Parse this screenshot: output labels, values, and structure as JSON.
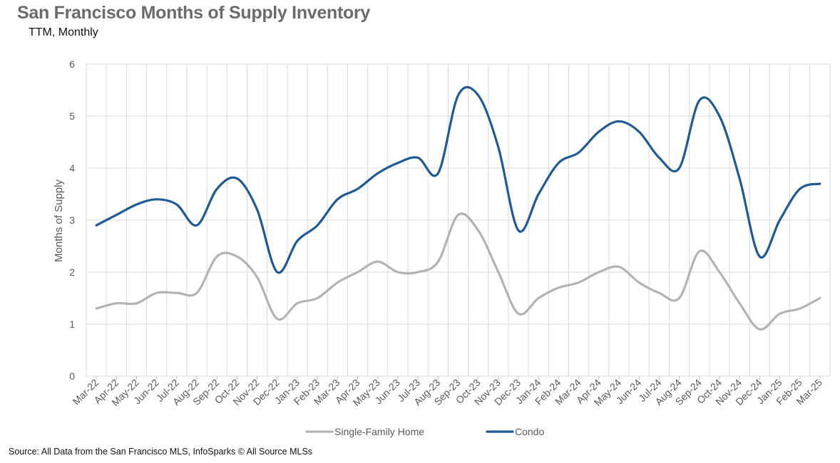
{
  "title": "San Francisco Months of Supply Inventory",
  "subtitle": "TTM, Monthly",
  "source": "Source: All Data from the San Francisco MLS, InfoSparks © All Source MLSs",
  "chart_data": {
    "type": "line",
    "title": "San Francisco Months of Supply Inventory",
    "subtitle": "TTM, Monthly",
    "xlabel": "",
    "ylabel": "Months of Supply",
    "ylim": [
      0,
      6
    ],
    "yticks": [
      0,
      1,
      2,
      3,
      4,
      5,
      6
    ],
    "grid": true,
    "legend_position": "bottom",
    "categories": [
      "Mar-22",
      "Apr-22",
      "May-22",
      "Jun-22",
      "Jul-22",
      "Aug-22",
      "Sep-22",
      "Oct-22",
      "Nov-22",
      "Dec-22",
      "Jan-23",
      "Feb-23",
      "Mar-23",
      "Apr-23",
      "May-23",
      "Jun-23",
      "Jul-23",
      "Aug-23",
      "Sep-23",
      "Oct-23",
      "Nov-23",
      "Dec-23",
      "Jan-24",
      "Feb-24",
      "Mar-24",
      "Apr-24",
      "May-24",
      "Jun-24",
      "Jul-24",
      "Aug-24",
      "Sep-24",
      "Oct-24",
      "Nov-24",
      "Dec-24",
      "Jan-25",
      "Feb-25",
      "Mar-25"
    ],
    "series": [
      {
        "name": "Single-Family Home",
        "color": "#b3b3b3",
        "values": [
          1.3,
          1.4,
          1.4,
          1.6,
          1.6,
          1.6,
          2.3,
          2.3,
          1.9,
          1.1,
          1.4,
          1.5,
          1.8,
          2.0,
          2.2,
          2.0,
          2.0,
          2.2,
          3.1,
          2.8,
          2.0,
          1.2,
          1.5,
          1.7,
          1.8,
          2.0,
          2.1,
          1.8,
          1.6,
          1.5,
          2.4,
          2.0,
          1.4,
          0.9,
          1.2,
          1.3,
          1.5
        ]
      },
      {
        "name": "Condo",
        "color": "#1f5a96",
        "values": [
          2.9,
          3.1,
          3.3,
          3.4,
          3.3,
          2.9,
          3.6,
          3.8,
          3.2,
          2.0,
          2.6,
          2.9,
          3.4,
          3.6,
          3.9,
          4.1,
          4.2,
          3.9,
          5.4,
          5.4,
          4.4,
          2.8,
          3.5,
          4.1,
          4.3,
          4.7,
          4.9,
          4.7,
          4.2,
          4.0,
          5.3,
          5.0,
          3.8,
          2.3,
          3.0,
          3.6,
          3.7
        ]
      }
    ]
  }
}
